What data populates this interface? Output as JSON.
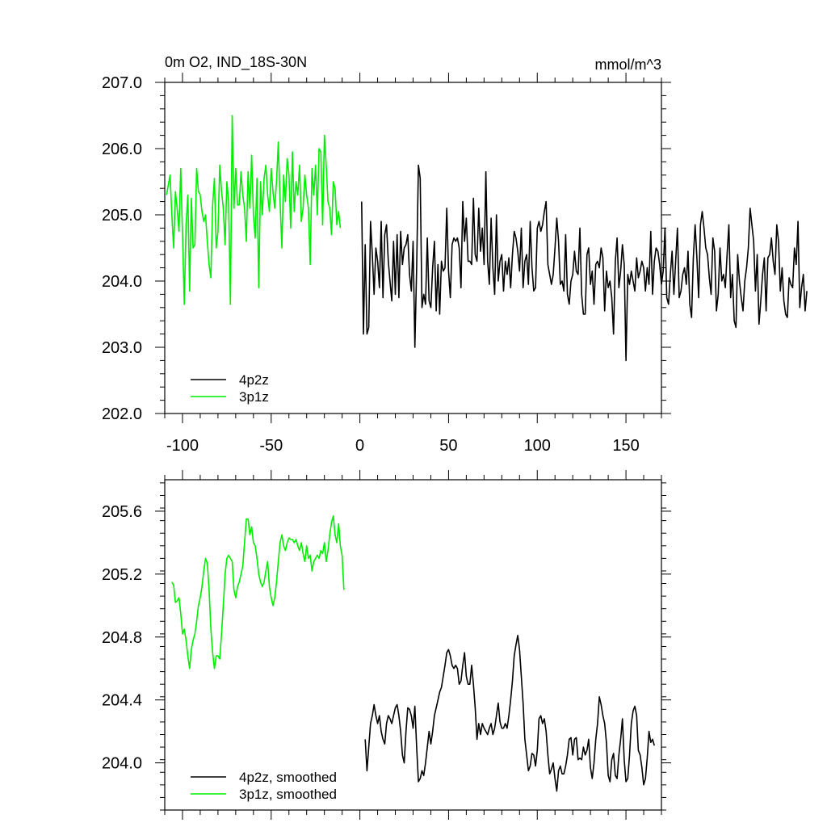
{
  "figure": {
    "title_left": "0m O2, IND_18S-30N",
    "title_right": "mmol/m^3"
  },
  "chart_data": [
    {
      "type": "line",
      "panel": "top",
      "xlim": [
        -110,
        170
      ],
      "ylim": [
        202.0,
        207.0
      ],
      "x_ticks": [
        -100,
        -50,
        0,
        50,
        100,
        150
      ],
      "x_tick_labels": [
        "-100",
        "-50",
        "0",
        "50",
        "100",
        "150"
      ],
      "y_ticks": [
        202.0,
        203.0,
        204.0,
        205.0,
        206.0,
        207.0
      ],
      "y_tick_labels": [
        "202.0",
        "203.0",
        "204.0",
        "205.0",
        "206.0",
        "207.0"
      ],
      "legend_position": "bottom-left",
      "series": [
        {
          "name": "4p2z",
          "color": "#000000",
          "x_start": 1,
          "x_step": 1,
          "values": [
            205.2,
            203.2,
            204.55,
            203.2,
            203.3,
            204.9,
            204.4,
            203.8,
            204.5,
            204.3,
            203.9,
            204.9,
            203.75,
            204.7,
            204.85,
            204.3,
            204.0,
            203.7,
            204.6,
            203.8,
            204.7,
            203.75,
            204.75,
            204.25,
            204.5,
            204.55,
            204.7,
            204.1,
            203.85,
            204.6,
            203.0,
            204.2,
            205.75,
            205.55,
            203.6,
            203.8,
            203.65,
            204.65,
            203.7,
            203.6,
            204.2,
            204.6,
            203.55,
            204.25,
            203.5,
            204.3,
            204.15,
            204.2,
            205.1,
            204.15,
            203.75,
            204.55,
            204.65,
            204.6,
            204.65,
            204.5,
            203.9,
            205.2,
            204.6,
            204.95,
            204.3,
            204.3,
            204.25,
            205.25,
            204.4,
            204.3,
            205.1,
            204.45,
            204.8,
            204.25,
            205.65,
            204.3,
            203.95,
            204.95,
            204.2,
            203.8,
            205.0,
            204.0,
            204.3,
            204.4,
            203.85,
            204.3,
            204.1,
            204.35,
            203.9,
            204.4,
            204.75,
            204.65,
            204.45,
            204.15,
            204.8,
            203.9,
            204.3,
            204.4,
            203.95,
            204.9,
            204.2,
            203.85,
            203.9,
            204.8,
            204.9,
            204.75,
            204.85,
            205.05,
            205.2,
            204.25,
            204.1,
            203.95,
            204.1,
            204.5,
            204.95,
            204.6,
            203.95,
            204.0,
            203.85,
            204.7,
            203.8,
            203.65,
            204.0,
            204.1,
            204.45,
            204.15,
            204.1,
            204.8,
            203.8,
            203.5,
            203.5,
            204.4,
            204.5,
            203.95,
            204.15,
            203.65,
            204.25,
            204.3,
            204.2,
            204.5,
            204.35,
            203.55,
            204.15,
            203.9,
            204.0,
            203.75,
            203.2,
            204.3,
            204.65,
            203.9,
            204.15,
            204.55,
            204.25,
            202.8,
            204.1,
            203.95,
            204.15,
            204.0,
            203.85,
            204.35,
            204.05,
            204.15,
            204.3,
            204.2,
            203.85,
            204.2,
            203.95,
            204.75,
            203.8,
            204.3,
            204.5,
            204.45,
            204.25,
            203.95,
            204.15,
            204.8,
            203.75,
            203.65,
            204.1,
            204.45,
            203.8,
            204.3,
            204.8,
            203.75,
            203.85,
            204.1,
            204.2,
            203.95,
            204.45,
            203.65,
            203.45,
            204.35,
            204.85,
            204.35,
            203.75,
            204.85,
            205.05,
            204.8,
            204.5,
            204.4,
            204.05,
            203.8,
            204.65,
            204.45,
            203.55,
            203.8,
            204.5,
            204.0,
            204.1,
            203.9,
            204.4,
            204.85,
            203.75,
            204.1,
            203.4,
            203.3,
            204.4,
            204.0,
            203.75,
            203.55,
            204.0,
            204.2,
            204.5,
            205.1,
            204.85,
            204.6,
            203.85,
            204.4,
            203.35,
            203.7,
            204.1,
            204.35,
            203.55,
            204.35,
            204.4,
            204.65,
            204.3,
            204.1,
            204.85,
            204.6,
            203.85,
            204.2,
            203.7,
            203.5,
            203.45,
            204.05,
            203.95,
            203.9,
            204.5,
            204.25,
            204.9,
            203.6,
            203.9,
            204.1,
            203.55,
            203.85
          ],
          "value_note": ""
        },
        {
          "name": "3p1z",
          "color": "#00ee00",
          "x_start": -109,
          "x_step": 1,
          "values": [
            205.3,
            205.45,
            205.6,
            205.0,
            204.5,
            205.35,
            205.1,
            204.75,
            205.7,
            204.7,
            203.65,
            204.85,
            205.3,
            203.85,
            205.25,
            204.5,
            204.55,
            205.7,
            205.35,
            205.3,
            205.05,
            204.9,
            205.0,
            204.6,
            204.25,
            204.05,
            205.15,
            205.55,
            204.5,
            204.75,
            205.75,
            205.35,
            205.1,
            204.55,
            205.5,
            205.2,
            203.65,
            206.5,
            205.1,
            205.7,
            205.15,
            205.15,
            205.65,
            205.3,
            205.1,
            204.6,
            205.65,
            205.1,
            205.9,
            205.0,
            204.65,
            205.55,
            203.9,
            205.5,
            205.0,
            205.55,
            205.75,
            205.3,
            205.05,
            205.7,
            205.35,
            205.1,
            205.5,
            206.1,
            205.2,
            204.5,
            205.6,
            205.2,
            205.85,
            205.6,
            204.8,
            205.95,
            205.05,
            205.5,
            205.3,
            205.75,
            204.9,
            205.1,
            205.6,
            205.3,
            205.1,
            204.25,
            205.7,
            205.3,
            205.75,
            205.0,
            206.0,
            205.95,
            204.85,
            206.2,
            205.75,
            205.2,
            205.1,
            204.7,
            205.5,
            205.4,
            204.85,
            205.05,
            204.8
          ]
        }
      ]
    },
    {
      "type": "line",
      "panel": "bottom",
      "xlim": [
        -110,
        170
      ],
      "ylim": [
        203.7,
        205.8
      ],
      "y_ticks": [
        204.0,
        204.4,
        204.8,
        205.2,
        205.6
      ],
      "y_tick_labels": [
        "204.0",
        "204.4",
        "204.8",
        "205.2",
        "205.6"
      ],
      "legend_position": "bottom-left",
      "series": [
        {
          "name": "4p2z, smoothed",
          "color": "#000000",
          "x_start": 3,
          "x_step": 1,
          "values": [
            204.15,
            203.95,
            204.1,
            204.25,
            204.3,
            204.37,
            204.3,
            204.25,
            204.3,
            204.2,
            204.15,
            204.12,
            204.25,
            204.3,
            204.28,
            204.25,
            204.3,
            204.35,
            204.37,
            204.3,
            204.2,
            204.05,
            204.0,
            204.2,
            204.35,
            204.34,
            204.3,
            204.22,
            204.36,
            204.1,
            203.88,
            203.9,
            203.95,
            203.92,
            204.0,
            204.1,
            204.2,
            204.12,
            204.2,
            204.3,
            204.35,
            204.4,
            204.45,
            204.48,
            204.55,
            204.62,
            204.7,
            204.72,
            204.68,
            204.62,
            204.6,
            204.62,
            204.6,
            204.5,
            204.52,
            204.62,
            204.7,
            204.55,
            204.5,
            204.5,
            204.62,
            204.5,
            204.35,
            204.15,
            204.25,
            204.18,
            204.25,
            204.22,
            204.2,
            204.18,
            204.22,
            204.25,
            204.18,
            204.22,
            204.3,
            204.38,
            204.26,
            204.22,
            204.22,
            204.25,
            204.22,
            204.3,
            204.4,
            204.52,
            204.68,
            204.75,
            204.81,
            204.72,
            204.55,
            204.38,
            204.15,
            204.05,
            203.95,
            203.98,
            204.06,
            204.05,
            203.98,
            204.08,
            204.28,
            204.3,
            204.25,
            204.28,
            204.2,
            204.05,
            203.93,
            203.96,
            204.0,
            203.9,
            203.82,
            203.95,
            203.98,
            203.93,
            203.93,
            203.98,
            204.05,
            204.15,
            204.16,
            204.05,
            204.15,
            204.16,
            204.02,
            204.03,
            204.02,
            204.1,
            204.05,
            204.08,
            204.15,
            203.97,
            203.9,
            204.0,
            204.15,
            204.25,
            204.42,
            204.37,
            204.3,
            204.25,
            204.13,
            203.92,
            203.88,
            204.02,
            204.06,
            203.92,
            203.9,
            204.05,
            204.15,
            204.28,
            204.02,
            203.88,
            203.9,
            204.05,
            204.25,
            204.33,
            204.36,
            204.3,
            204.08,
            204.05,
            203.97,
            203.86,
            203.9,
            204.03,
            204.2,
            204.13,
            204.15,
            204.11
          ],
          "value_note": ""
        },
        {
          "name": "3p1z, smoothed",
          "color": "#00ee00",
          "x_start": -106,
          "x_step": 1,
          "values": [
            205.15,
            205.13,
            205.02,
            205.03,
            205.05,
            204.95,
            204.82,
            204.85,
            204.78,
            204.68,
            204.6,
            204.72,
            204.78,
            204.82,
            204.9,
            205.0,
            205.05,
            205.12,
            205.22,
            205.3,
            205.27,
            205.1,
            204.85,
            204.7,
            204.6,
            204.68,
            204.68,
            204.66,
            204.82,
            205.0,
            205.2,
            205.3,
            205.32,
            205.3,
            205.28,
            205.1,
            205.05,
            205.12,
            205.15,
            205.2,
            205.25,
            205.4,
            205.55,
            205.55,
            205.45,
            205.5,
            205.4,
            205.38,
            205.3,
            205.2,
            205.15,
            205.12,
            205.15,
            205.22,
            205.28,
            205.12,
            205.05,
            205.0,
            205.05,
            205.15,
            205.28,
            205.4,
            205.45,
            205.38,
            205.35,
            205.4,
            205.43,
            205.42,
            205.42,
            205.4,
            205.42,
            205.38,
            205.35,
            205.4,
            205.33,
            205.28,
            205.38,
            205.3,
            205.32,
            205.22,
            205.28,
            205.3,
            205.32,
            205.3,
            205.35,
            205.33,
            205.4,
            205.28,
            205.35,
            205.45,
            205.53,
            205.57,
            205.45,
            205.4,
            205.52,
            205.38,
            205.32,
            205.1
          ]
        }
      ]
    }
  ]
}
